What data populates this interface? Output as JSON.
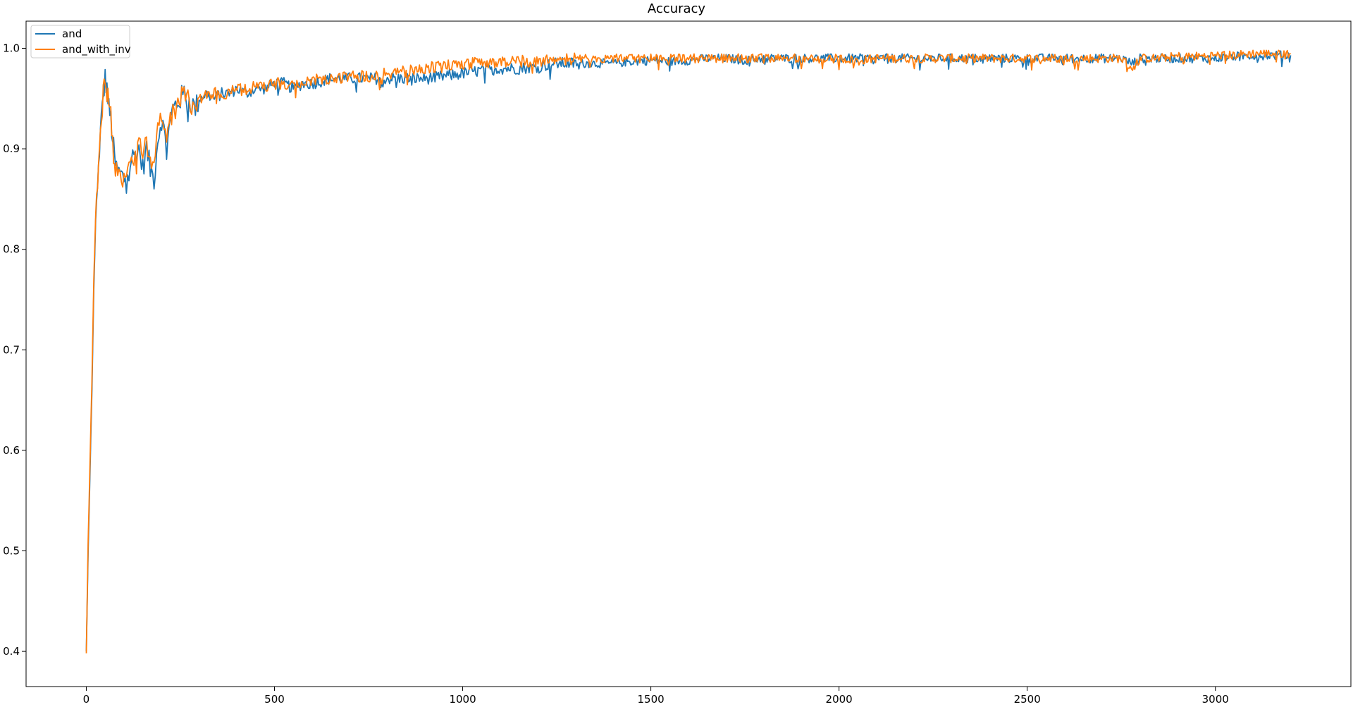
{
  "chart_data": {
    "type": "line",
    "title": "Accuracy",
    "xlabel": "",
    "ylabel": "",
    "xlim": [
      -160,
      3360
    ],
    "ylim": [
      0.365,
      1.027
    ],
    "x_ticks": [
      0,
      500,
      1000,
      1500,
      2000,
      2500,
      3000
    ],
    "y_ticks": [
      0.4,
      0.5,
      0.6,
      0.7,
      0.8,
      0.9,
      1.0
    ],
    "x_tick_labels": [
      "0",
      "500",
      "1000",
      "1500",
      "2000",
      "2500",
      "3000"
    ],
    "y_tick_labels": [
      "0.4",
      "0.5",
      "0.6",
      "0.7",
      "0.8",
      "0.9",
      "1.0"
    ],
    "grid": false,
    "legend_position": "top-left",
    "series": [
      {
        "name": "and",
        "color": "#1f77b4",
        "x": [
          0,
          5,
          10,
          15,
          20,
          25,
          30,
          35,
          40,
          45,
          50,
          55,
          60,
          65,
          70,
          75,
          80,
          90,
          100,
          110,
          120,
          130,
          140,
          150,
          160,
          170,
          180,
          190,
          200,
          210,
          220,
          230,
          240,
          250,
          260,
          270,
          280,
          290,
          300,
          320,
          340,
          360,
          380,
          400,
          425,
          450,
          475,
          500,
          525,
          550,
          575,
          600,
          650,
          700,
          750,
          800,
          850,
          900,
          950,
          1000,
          1050,
          1100,
          1150,
          1200,
          1250,
          1300,
          1350,
          1400,
          1450,
          1500,
          1550,
          1600,
          1650,
          1700,
          1750,
          1800,
          1850,
          1900,
          1950,
          2000,
          2050,
          2100,
          2150,
          2200,
          2250,
          2300,
          2350,
          2400,
          2450,
          2500,
          2550,
          2600,
          2650,
          2700,
          2750,
          2780,
          2800,
          2850,
          2900,
          2950,
          3000,
          3050,
          3100,
          3150,
          3200
        ],
        "values": [
          0.4,
          0.5,
          0.58,
          0.66,
          0.76,
          0.83,
          0.86,
          0.9,
          0.93,
          0.95,
          0.97,
          0.96,
          0.94,
          0.93,
          0.91,
          0.89,
          0.88,
          0.875,
          0.87,
          0.88,
          0.89,
          0.895,
          0.9,
          0.88,
          0.9,
          0.88,
          0.87,
          0.91,
          0.93,
          0.91,
          0.92,
          0.94,
          0.945,
          0.95,
          0.955,
          0.95,
          0.945,
          0.94,
          0.95,
          0.955,
          0.95,
          0.955,
          0.955,
          0.96,
          0.955,
          0.96,
          0.96,
          0.965,
          0.965,
          0.96,
          0.965,
          0.965,
          0.97,
          0.97,
          0.97,
          0.97,
          0.97,
          0.97,
          0.972,
          0.975,
          0.978,
          0.98,
          0.98,
          0.982,
          0.985,
          0.985,
          0.985,
          0.985,
          0.987,
          0.988,
          0.987,
          0.988,
          0.99,
          0.99,
          0.988,
          0.99,
          0.99,
          0.99,
          0.99,
          0.99,
          0.99,
          0.99,
          0.99,
          0.99,
          0.99,
          0.99,
          0.99,
          0.99,
          0.99,
          0.99,
          0.99,
          0.99,
          0.99,
          0.99,
          0.99,
          0.985,
          0.99,
          0.99,
          0.99,
          0.99,
          0.99,
          0.992,
          0.993,
          0.993,
          0.993
        ]
      },
      {
        "name": "and_with_inv",
        "color": "#ff7f0e",
        "x": [
          0,
          5,
          10,
          15,
          20,
          25,
          30,
          35,
          40,
          45,
          50,
          55,
          60,
          65,
          70,
          75,
          80,
          90,
          100,
          110,
          120,
          130,
          140,
          150,
          160,
          170,
          180,
          190,
          200,
          210,
          220,
          230,
          240,
          250,
          260,
          270,
          280,
          290,
          300,
          320,
          340,
          360,
          380,
          400,
          425,
          450,
          475,
          500,
          525,
          550,
          575,
          600,
          650,
          700,
          750,
          800,
          850,
          900,
          950,
          1000,
          1050,
          1100,
          1150,
          1200,
          1250,
          1300,
          1350,
          1400,
          1450,
          1500,
          1550,
          1600,
          1650,
          1700,
          1750,
          1800,
          1850,
          1900,
          1950,
          2000,
          2050,
          2100,
          2150,
          2200,
          2250,
          2300,
          2350,
          2400,
          2450,
          2500,
          2550,
          2600,
          2650,
          2700,
          2750,
          2780,
          2800,
          2850,
          2900,
          2950,
          3000,
          3050,
          3100,
          3150,
          3200
        ],
        "values": [
          0.398,
          0.51,
          0.59,
          0.67,
          0.77,
          0.835,
          0.865,
          0.905,
          0.935,
          0.955,
          0.965,
          0.955,
          0.945,
          0.93,
          0.905,
          0.885,
          0.875,
          0.87,
          0.865,
          0.875,
          0.885,
          0.89,
          0.905,
          0.89,
          0.905,
          0.885,
          0.875,
          0.92,
          0.935,
          0.915,
          0.925,
          0.935,
          0.945,
          0.95,
          0.955,
          0.95,
          0.945,
          0.945,
          0.95,
          0.955,
          0.955,
          0.955,
          0.955,
          0.96,
          0.958,
          0.962,
          0.962,
          0.965,
          0.965,
          0.962,
          0.965,
          0.968,
          0.97,
          0.972,
          0.972,
          0.975,
          0.977,
          0.98,
          0.982,
          0.985,
          0.985,
          0.987,
          0.987,
          0.987,
          0.988,
          0.99,
          0.99,
          0.99,
          0.99,
          0.99,
          0.99,
          0.99,
          0.99,
          0.99,
          0.99,
          0.99,
          0.99,
          0.99,
          0.988,
          0.99,
          0.988,
          0.99,
          0.99,
          0.99,
          0.99,
          0.99,
          0.99,
          0.99,
          0.99,
          0.99,
          0.99,
          0.99,
          0.99,
          0.99,
          0.99,
          0.98,
          0.99,
          0.99,
          0.992,
          0.992,
          0.993,
          0.993,
          0.995,
          0.995,
          0.995
        ]
      }
    ]
  }
}
